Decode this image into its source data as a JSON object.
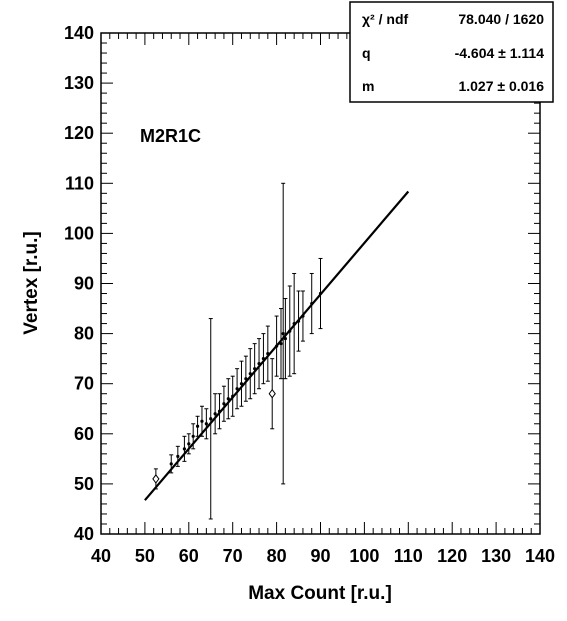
{
  "chart_data": {
    "type": "scatter",
    "xlabel": "Max Count [r.u.]",
    "ylabel": "Vertex [r.u.]",
    "xlim": [
      40,
      140
    ],
    "ylim": [
      40,
      140
    ],
    "x_ticks": [
      "40",
      "50",
      "60",
      "70",
      "80",
      "90",
      "100",
      "110",
      "120",
      "130",
      "140"
    ],
    "y_ticks": [
      "40",
      "50",
      "60",
      "70",
      "80",
      "90",
      "100",
      "110",
      "120",
      "130",
      "140"
    ],
    "annotation": "M2R1C",
    "grid": false,
    "legend": "none",
    "stats_box": {
      "position": "top-right",
      "rows": [
        {
          "label": "χ² / ndf",
          "value": "78.040 / 1620"
        },
        {
          "label": "q",
          "value": "-4.604 ± 1.114"
        },
        {
          "label": "m",
          "value": "1.027 ± 0.016"
        }
      ]
    },
    "fit_line": {
      "q": -4.604,
      "m": 1.027,
      "x_range": [
        50,
        110
      ]
    },
    "points": [
      {
        "x": 52.5,
        "y": 51.0,
        "err": 2.0,
        "marker": "diamond"
      },
      {
        "x": 56.0,
        "y": 54.0,
        "err": 1.8
      },
      {
        "x": 57.5,
        "y": 55.5,
        "err": 2.0
      },
      {
        "x": 59.0,
        "y": 57.0,
        "err": 2.5
      },
      {
        "x": 60.0,
        "y": 58.0,
        "err": 2.0
      },
      {
        "x": 61.0,
        "y": 59.5,
        "err": 2.5
      },
      {
        "x": 62.0,
        "y": 61.5,
        "err": 2.0
      },
      {
        "x": 63.0,
        "y": 62.5,
        "err": 3.0
      },
      {
        "x": 64.0,
        "y": 62.0,
        "err": 3.0
      },
      {
        "x": 65.0,
        "y": 63.0,
        "err": 20.0
      },
      {
        "x": 66.0,
        "y": 64.0,
        "err": 4.0
      },
      {
        "x": 67.0,
        "y": 64.5,
        "err": 3.5
      },
      {
        "x": 68.0,
        "y": 66.0,
        "err": 3.5
      },
      {
        "x": 69.0,
        "y": 67.0,
        "err": 4.0
      },
      {
        "x": 70.0,
        "y": 67.5,
        "err": 4.0
      },
      {
        "x": 71.0,
        "y": 69.0,
        "err": 4.0
      },
      {
        "x": 72.0,
        "y": 70.0,
        "err": 4.5
      },
      {
        "x": 73.0,
        "y": 71.0,
        "err": 4.5
      },
      {
        "x": 74.0,
        "y": 72.0,
        "err": 5.0
      },
      {
        "x": 75.0,
        "y": 73.0,
        "err": 5.0
      },
      {
        "x": 76.0,
        "y": 74.0,
        "err": 5.0
      },
      {
        "x": 77.0,
        "y": 75.0,
        "err": 5.0
      },
      {
        "x": 78.0,
        "y": 76.0,
        "err": 5.5
      },
      {
        "x": 79.0,
        "y": 68.0,
        "err": 7.0,
        "marker": "diamond"
      },
      {
        "x": 80.0,
        "y": 77.5,
        "err": 6.0
      },
      {
        "x": 81.0,
        "y": 78.0,
        "err": 7.0
      },
      {
        "x": 81.5,
        "y": 80.0,
        "err": 30.0
      },
      {
        "x": 82.0,
        "y": 79.0,
        "err": 8.0
      },
      {
        "x": 83.0,
        "y": 80.5,
        "err": 9.0
      },
      {
        "x": 84.0,
        "y": 82.0,
        "err": 10.0
      },
      {
        "x": 85.0,
        "y": 82.5,
        "err": 6.0
      },
      {
        "x": 86.0,
        "y": 83.5,
        "err": 5.0
      },
      {
        "x": 88.0,
        "y": 86.0,
        "err": 6.0
      },
      {
        "x": 90.0,
        "y": 88.0,
        "err": 7.0
      }
    ]
  }
}
